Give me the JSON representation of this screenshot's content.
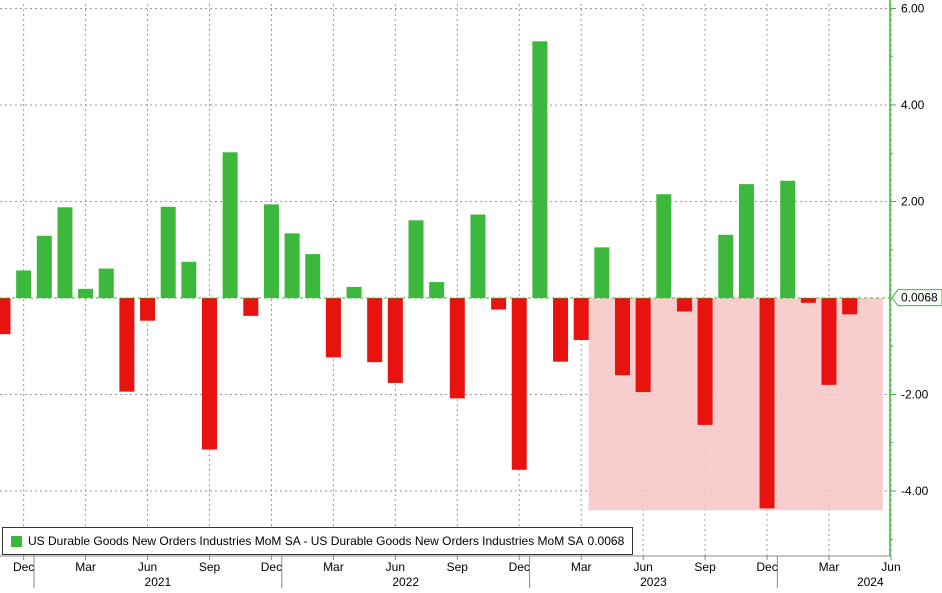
{
  "chart_data": {
    "type": "bar",
    "title": "",
    "xlabel": "",
    "ylabel": "",
    "ylim": [
      -5.0,
      6.2
    ],
    "y_ticks": [
      -4,
      -2,
      0,
      2,
      4,
      6
    ],
    "y_tick_labels": [
      "-4.00",
      "-2.00",
      "",
      "2.00",
      "4.00",
      "6.00"
    ],
    "y_axis_side": "right",
    "grid": true,
    "legend_position": "bottom-left",
    "positive_color": "#3cb83c",
    "negative_color": "#e8120f",
    "axis_color": "#3cb83c",
    "shade_color": "#f7c4c4",
    "last_value_label": "0.0068",
    "legend": {
      "label": "US Durable Goods New Orders Industries MoM SA - US Durable Goods New Orders Industries MoM SA",
      "value": "0.0068"
    },
    "x_month_labels": [
      "Dec",
      "Mar",
      "Jun",
      "Sep",
      "Dec",
      "Mar",
      "Jun",
      "Sep",
      "Dec",
      "Mar",
      "Jun",
      "Sep",
      "Dec",
      "Mar",
      "Jun"
    ],
    "x_year_labels": [
      "2021",
      "2022",
      "2023",
      "2024"
    ],
    "categories": [
      "Nov 2020",
      "Dec 2020",
      "Jan 2021",
      "Feb 2021",
      "Mar 2021",
      "Apr 2021",
      "May 2021",
      "Jun 2021",
      "Jul 2021",
      "Aug 2021",
      "Sep 2021",
      "Oct 2021",
      "Nov 2021",
      "Dec 2021",
      "Jan 2022",
      "Feb 2022",
      "Mar 2022",
      "Apr 2022",
      "May 2022",
      "Jun 2022",
      "Jul 2022",
      "Aug 2022",
      "Sep 2022",
      "Oct 2022",
      "Nov 2022",
      "Dec 2022",
      "Jan 2023",
      "Feb 2023",
      "Mar 2023",
      "Apr 2023",
      "May 2023",
      "Jun 2023",
      "Jul 2023",
      "Aug 2023",
      "Sep 2023",
      "Oct 2023",
      "Nov 2023",
      "Dec 2023",
      "Jan 2024",
      "Feb 2024",
      "Mar 2024",
      "Apr 2024",
      "May 2024"
    ],
    "values": [
      -0.75,
      0.57,
      1.29,
      1.88,
      0.19,
      0.61,
      -1.94,
      -0.47,
      1.89,
      0.75,
      -3.14,
      3.02,
      -0.37,
      1.94,
      1.34,
      0.91,
      -1.23,
      0.23,
      -1.33,
      -1.76,
      1.61,
      0.33,
      -2.08,
      1.73,
      -0.24,
      -3.56,
      5.32,
      -1.32,
      -0.87,
      1.05,
      -1.6,
      -1.95,
      2.15,
      -0.28,
      -2.63,
      1.31,
      2.36,
      -4.36,
      2.43,
      -0.1,
      -1.8,
      -0.34,
      0.0068
    ],
    "shaded_range": {
      "from": "Apr 2023",
      "to": "May 2024",
      "y_from": -4.4,
      "y_to": 0
    }
  }
}
